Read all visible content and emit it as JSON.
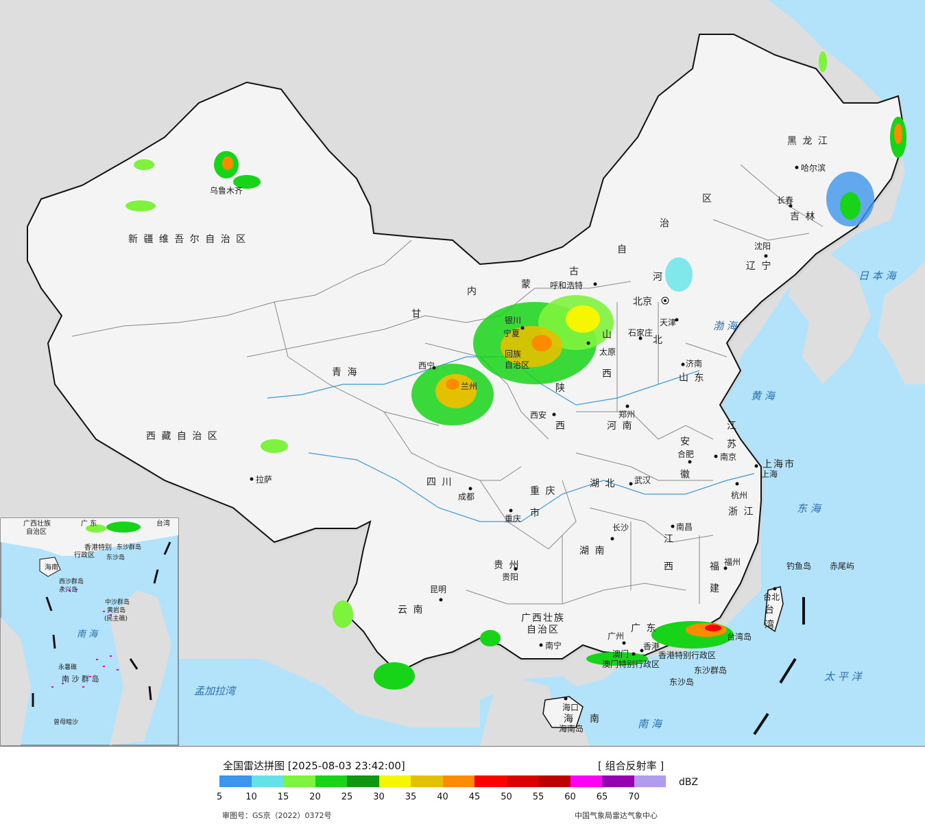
{
  "map": {
    "colors": {
      "sea": "#b3e3fa",
      "land_outside": "#dedede",
      "china": "#f4f4f4",
      "border": "#111111",
      "river": "#3a9ad9"
    },
    "regions": [
      {
        "id": "xinjiang",
        "text": "新 疆 维 吾 尔 自 治 区"
      },
      {
        "id": "tibet",
        "text": "西 藏 自 治 区"
      },
      {
        "id": "qinghai",
        "text": "青      海"
      },
      {
        "id": "gansu",
        "text": "甘"
      },
      {
        "id": "neimeng1",
        "text": "内"
      },
      {
        "id": "neimeng2",
        "text": "蒙"
      },
      {
        "id": "neimeng3",
        "text": "古"
      },
      {
        "id": "neimeng4",
        "text": "自"
      },
      {
        "id": "neimeng5",
        "text": "治"
      },
      {
        "id": "neimeng6",
        "text": "区"
      },
      {
        "id": "heilongjiang",
        "text": "黑 龙 江"
      },
      {
        "id": "jilin",
        "text": "吉 林"
      },
      {
        "id": "liaoning",
        "text": "辽 宁"
      },
      {
        "id": "hebei1",
        "text": "河"
      },
      {
        "id": "hebei2",
        "text": "北"
      },
      {
        "id": "shanxi1",
        "text": "山"
      },
      {
        "id": "shanxi2",
        "text": "西"
      },
      {
        "id": "shaanxi1",
        "text": "陕"
      },
      {
        "id": "shaanxi2",
        "text": "西"
      },
      {
        "id": "shandong",
        "text": "山 东"
      },
      {
        "id": "henan",
        "text": "河 南"
      },
      {
        "id": "jiangsu1",
        "text": "江"
      },
      {
        "id": "jiangsu2",
        "text": "苏"
      },
      {
        "id": "anhui1",
        "text": "安"
      },
      {
        "id": "anhui2",
        "text": "徽"
      },
      {
        "id": "hubei",
        "text": "湖 北"
      },
      {
        "id": "sichuan",
        "text": "四   川"
      },
      {
        "id": "chongqing1",
        "text": "重 庆"
      },
      {
        "id": "chongqing2",
        "text": "市"
      },
      {
        "id": "zhejiang",
        "text": "浙 江"
      },
      {
        "id": "jiangxi1",
        "text": "江"
      },
      {
        "id": "jiangxi2",
        "text": "西"
      },
      {
        "id": "hunan",
        "text": "湖   南"
      },
      {
        "id": "guizhou",
        "text": "贵   州"
      },
      {
        "id": "yunnan",
        "text": "云   南"
      },
      {
        "id": "guangxi1",
        "text": "广西壮族"
      },
      {
        "id": "guangxi2",
        "text": "自治区"
      },
      {
        "id": "guangdong",
        "text": "广   东"
      },
      {
        "id": "fujian1",
        "text": "福"
      },
      {
        "id": "fujian2",
        "text": "建"
      },
      {
        "id": "taiwan1",
        "text": "台"
      },
      {
        "id": "taiwan2",
        "text": "湾"
      },
      {
        "id": "hainan1",
        "text": "海"
      },
      {
        "id": "hainan2",
        "text": "南"
      },
      {
        "id": "ningxia",
        "text": "宁夏"
      },
      {
        "id": "shanghai",
        "text": "上海市"
      },
      {
        "id": "ningxia_label",
        "text": "回族"
      },
      {
        "id": "ningxia_label2",
        "text": "自治区"
      },
      {
        "id": "hk",
        "text": "香港特别行政区"
      },
      {
        "id": "macao",
        "text": "澳门特别行政区"
      }
    ],
    "cities": [
      {
        "id": "urumqi",
        "text": "乌鲁木齐"
      },
      {
        "id": "lhasa",
        "text": "拉萨"
      },
      {
        "id": "xining",
        "text": "西宁"
      },
      {
        "id": "lanzhou",
        "text": "兰州"
      },
      {
        "id": "yinchuan",
        "text": "银川"
      },
      {
        "id": "hohhot",
        "text": "呼和浩特"
      },
      {
        "id": "beijing",
        "text": "北京"
      },
      {
        "id": "tianjin",
        "text": "天津"
      },
      {
        "id": "shijiazhuang",
        "text": "石家庄"
      },
      {
        "id": "taiyuan",
        "text": "太原"
      },
      {
        "id": "xian",
        "text": "西安"
      },
      {
        "id": "zhengzhou",
        "text": "郑州"
      },
      {
        "id": "jinan",
        "text": "济南"
      },
      {
        "id": "shenyang",
        "text": "沈阳"
      },
      {
        "id": "changchun",
        "text": "长春"
      },
      {
        "id": "harbin",
        "text": "哈尔滨"
      },
      {
        "id": "nanjing",
        "text": "南京"
      },
      {
        "id": "hefei",
        "text": "合肥"
      },
      {
        "id": "shanghai_c",
        "text": "上海"
      },
      {
        "id": "hangzhou",
        "text": "杭州"
      },
      {
        "id": "wuhan",
        "text": "武汉"
      },
      {
        "id": "chengdu",
        "text": "成都"
      },
      {
        "id": "chongqing",
        "text": "重庆"
      },
      {
        "id": "changsha",
        "text": "长沙"
      },
      {
        "id": "nanchang",
        "text": "南昌"
      },
      {
        "id": "fuzhou",
        "text": "福州"
      },
      {
        "id": "guiyang",
        "text": "贵阳"
      },
      {
        "id": "kunming",
        "text": "昆明"
      },
      {
        "id": "nanning",
        "text": "南宁"
      },
      {
        "id": "guangzhou",
        "text": "广州"
      },
      {
        "id": "hongkong",
        "text": "香港"
      },
      {
        "id": "macau",
        "text": "澳门"
      },
      {
        "id": "haikou",
        "text": "海口"
      },
      {
        "id": "taibei",
        "text": "台北"
      }
    ],
    "seas": [
      {
        "id": "japan_sea",
        "text": "日 本 海"
      },
      {
        "id": "bohai",
        "text": "渤 海"
      },
      {
        "id": "yellow_sea",
        "text": "黄 海"
      },
      {
        "id": "east_sea",
        "text": "东 海"
      },
      {
        "id": "pacific",
        "text": "太   平   洋"
      },
      {
        "id": "south_sea",
        "text": "南      海"
      },
      {
        "id": "bengal",
        "text": "孟加拉湾"
      }
    ],
    "islands": [
      {
        "id": "diaoyu",
        "text": "钓鱼岛"
      },
      {
        "id": "chiwei",
        "text": "赤尾屿"
      },
      {
        "id": "taiwan_island",
        "text": "台湾岛"
      },
      {
        "id": "dongsha",
        "text": "东沙群岛"
      },
      {
        "id": "dongsha_dao",
        "text": "东沙岛"
      },
      {
        "id": "hainan_island",
        "text": "海南岛"
      }
    ],
    "inset": {
      "labels": [
        {
          "id": "i_gx",
          "text": "广西壮族"
        },
        {
          "id": "i_gx2",
          "text": "自治区"
        },
        {
          "id": "i_gd",
          "text": "广 东"
        },
        {
          "id": "i_tw",
          "text": "台湾"
        },
        {
          "id": "i_hk",
          "text": "香港特别"
        },
        {
          "id": "i_hk2",
          "text": "行政区"
        },
        {
          "id": "i_dongsha",
          "text": "东沙群岛"
        },
        {
          "id": "i_dongshadao",
          "text": "东沙岛"
        },
        {
          "id": "i_hainan",
          "text": "海南"
        },
        {
          "id": "i_xisha",
          "text": "西沙群岛"
        },
        {
          "id": "i_yongxing",
          "text": "永兴岛"
        },
        {
          "id": "i_zhongsha",
          "text": "中沙群岛"
        },
        {
          "id": "i_huangyan",
          "text": "黄岩岛"
        },
        {
          "id": "i_minzhu",
          "text": "(民主礁)"
        },
        {
          "id": "i_nanhai",
          "text": "南   海"
        },
        {
          "id": "i_yongshu",
          "text": "永暑礁"
        },
        {
          "id": "i_nansha",
          "text": "南 沙 群 岛"
        },
        {
          "id": "i_zengmu",
          "text": "曾母暗沙"
        }
      ]
    }
  },
  "legend": {
    "title": "全国雷达拼图 [2025-08-03 23:42:00]",
    "product": "[ 组合反射率 ]",
    "unit": "dBZ",
    "colors": [
      "#3c95ec",
      "#63e3e8",
      "#7ef33d",
      "#18d418",
      "#119611",
      "#f6f600",
      "#e3c000",
      "#fd8b00",
      "#fe0000",
      "#d80000",
      "#bc0000",
      "#fe00f6",
      "#9500b0",
      "#b09ced"
    ],
    "ticks": [
      "5",
      "10",
      "15",
      "20",
      "25",
      "30",
      "35",
      "40",
      "45",
      "50",
      "55",
      "60",
      "65",
      "70"
    ],
    "approval": "审图号：GS京（2022）0372号",
    "source": "中国气象局雷达气象中心"
  }
}
